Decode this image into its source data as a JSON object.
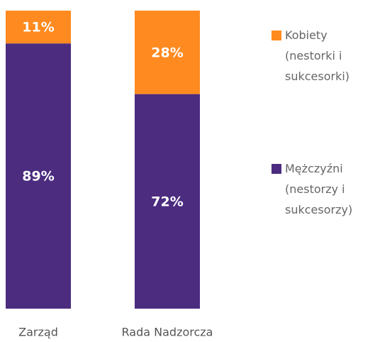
{
  "chart_data": {
    "type": "stacked-bar",
    "categories": [
      "Zarząd",
      "Rada Nadzorcza"
    ],
    "series": [
      {
        "name": "Kobiety (nestorki i sukcesorki)",
        "color": "#ff8a1f",
        "values": [
          11,
          28
        ],
        "value_labels": [
          "11%",
          "28%"
        ]
      },
      {
        "name": "Mężczyźni (nestorzy i sukcesorzy)",
        "color": "#4b2c7f",
        "values": [
          89,
          72
        ],
        "value_labels": [
          "89%",
          "72%"
        ]
      }
    ],
    "ylim": [
      0,
      100
    ]
  }
}
